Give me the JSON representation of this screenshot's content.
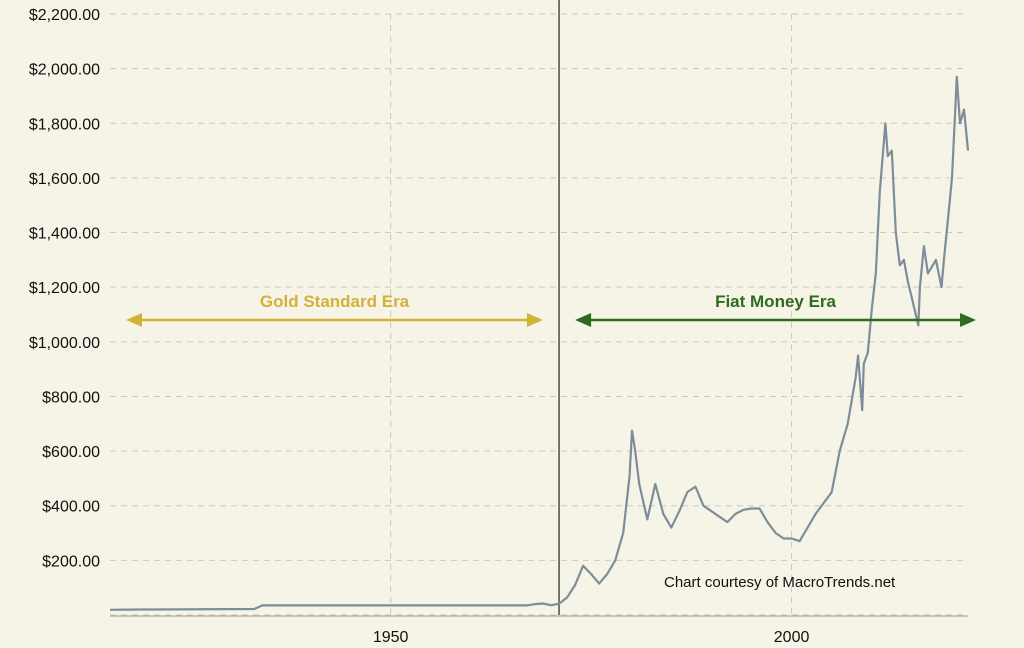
{
  "chart_data": {
    "type": "line",
    "title": "",
    "xlabel": "",
    "ylabel": "",
    "xlim": [
      1915,
      2022
    ],
    "ylim": [
      0,
      2200
    ],
    "grid": true,
    "y_ticks": [
      {
        "value": 200,
        "label": "$200.00"
      },
      {
        "value": 400,
        "label": "$400.00"
      },
      {
        "value": 600,
        "label": "$600.00"
      },
      {
        "value": 800,
        "label": "$800.00"
      },
      {
        "value": 1000,
        "label": "$1,000.00"
      },
      {
        "value": 1200,
        "label": "$1,200.00"
      },
      {
        "value": 1400,
        "label": "$1,400.00"
      },
      {
        "value": 1600,
        "label": "$1,600.00"
      },
      {
        "value": 1800,
        "label": "$1,800.00"
      },
      {
        "value": 2000,
        "label": "$2,000.00"
      },
      {
        "value": 2200,
        "label": "$2,200.00"
      }
    ],
    "x_ticks": [
      {
        "value": 1950,
        "label": "1950"
      },
      {
        "value": 2000,
        "label": "2000"
      }
    ],
    "line_color": "#7d8d9a",
    "divider": {
      "x": 1971,
      "color": "#555555"
    },
    "eras": [
      {
        "label": "Gold Standard Era",
        "from": 1917,
        "to": 1969,
        "y": 1080,
        "color": "#d4b13a"
      },
      {
        "label": "Fiat Money Era",
        "from": 1973,
        "to": 2023,
        "y": 1080,
        "color": "#2d6b1f"
      }
    ],
    "credit": "Chart courtesy of MacroTrends.net",
    "series": [
      {
        "x": [
          1915,
          1919,
          1920,
          1933,
          1934,
          1950,
          1960,
          1967,
          1968,
          1969,
          1970,
          1971,
          1972,
          1973,
          1974,
          1975,
          1976,
          1977,
          1978,
          1979,
          1979.8,
          1980.1,
          1980.5,
          1981,
          1982,
          1983,
          1984,
          1985,
          1986,
          1987,
          1988,
          1989,
          1990,
          1991,
          1992,
          1993,
          1994,
          1995,
          1996,
          1997,
          1998,
          1999,
          2000,
          2001,
          2002,
          2003,
          2004,
          2005,
          2006,
          2006.5,
          2007,
          2008,
          2008.3,
          2008.8,
          2009,
          2009.5,
          2010,
          2010.5,
          2011,
          2011.7,
          2012,
          2012.5,
          2013,
          2013.5,
          2014,
          2014.5,
          2015,
          2015.8,
          2016,
          2016.5,
          2017,
          2018,
          2018.7,
          2019,
          2019.5,
          2020,
          2020.6,
          2021,
          2021.5,
          2022
        ],
        "y": [
          19,
          20,
          20,
          22,
          35,
          35,
          35,
          35,
          40,
          42,
          36,
          41,
          64,
          110,
          180,
          150,
          115,
          150,
          200,
          300,
          510,
          675,
          600,
          480,
          350,
          480,
          370,
          320,
          380,
          450,
          470,
          400,
          380,
          360,
          340,
          370,
          385,
          390,
          390,
          340,
          300,
          280,
          280,
          270,
          320,
          370,
          410,
          450,
          600,
          650,
          700,
          870,
          950,
          750,
          920,
          960,
          1120,
          1250,
          1550,
          1800,
          1680,
          1700,
          1400,
          1280,
          1300,
          1220,
          1160,
          1060,
          1200,
          1350,
          1250,
          1300,
          1200,
          1300,
          1450,
          1600,
          1970,
          1800,
          1850,
          1700
        ]
      }
    ]
  }
}
